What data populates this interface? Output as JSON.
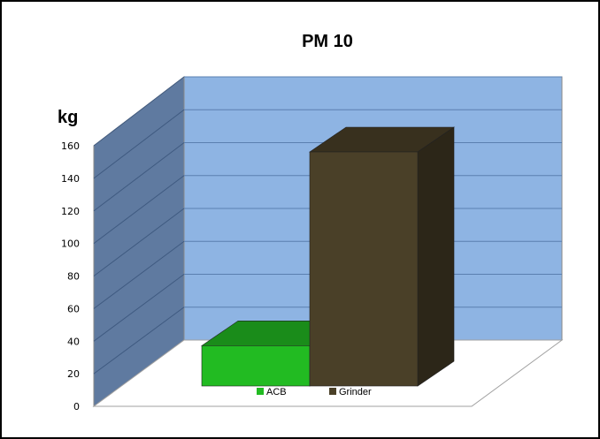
{
  "chart_data": {
    "type": "bar",
    "title": "PM 10",
    "ylabel": "kg",
    "xlabel": "",
    "ylim": [
      0,
      160
    ],
    "yticks": [
      0,
      20,
      40,
      60,
      80,
      100,
      120,
      140,
      160
    ],
    "grid": true,
    "three_d": true,
    "legend_position": "bottom",
    "series": [
      {
        "name": "ACB",
        "values": [
          25
        ],
        "color": "#22bb22"
      },
      {
        "name": "Grinder",
        "values": [
          145
        ],
        "color": "#4a4028"
      }
    ],
    "colors": {
      "back_wall": "#8eb4e3",
      "side_wall": "#5f7aa0",
      "floor": "#ffffff"
    }
  }
}
